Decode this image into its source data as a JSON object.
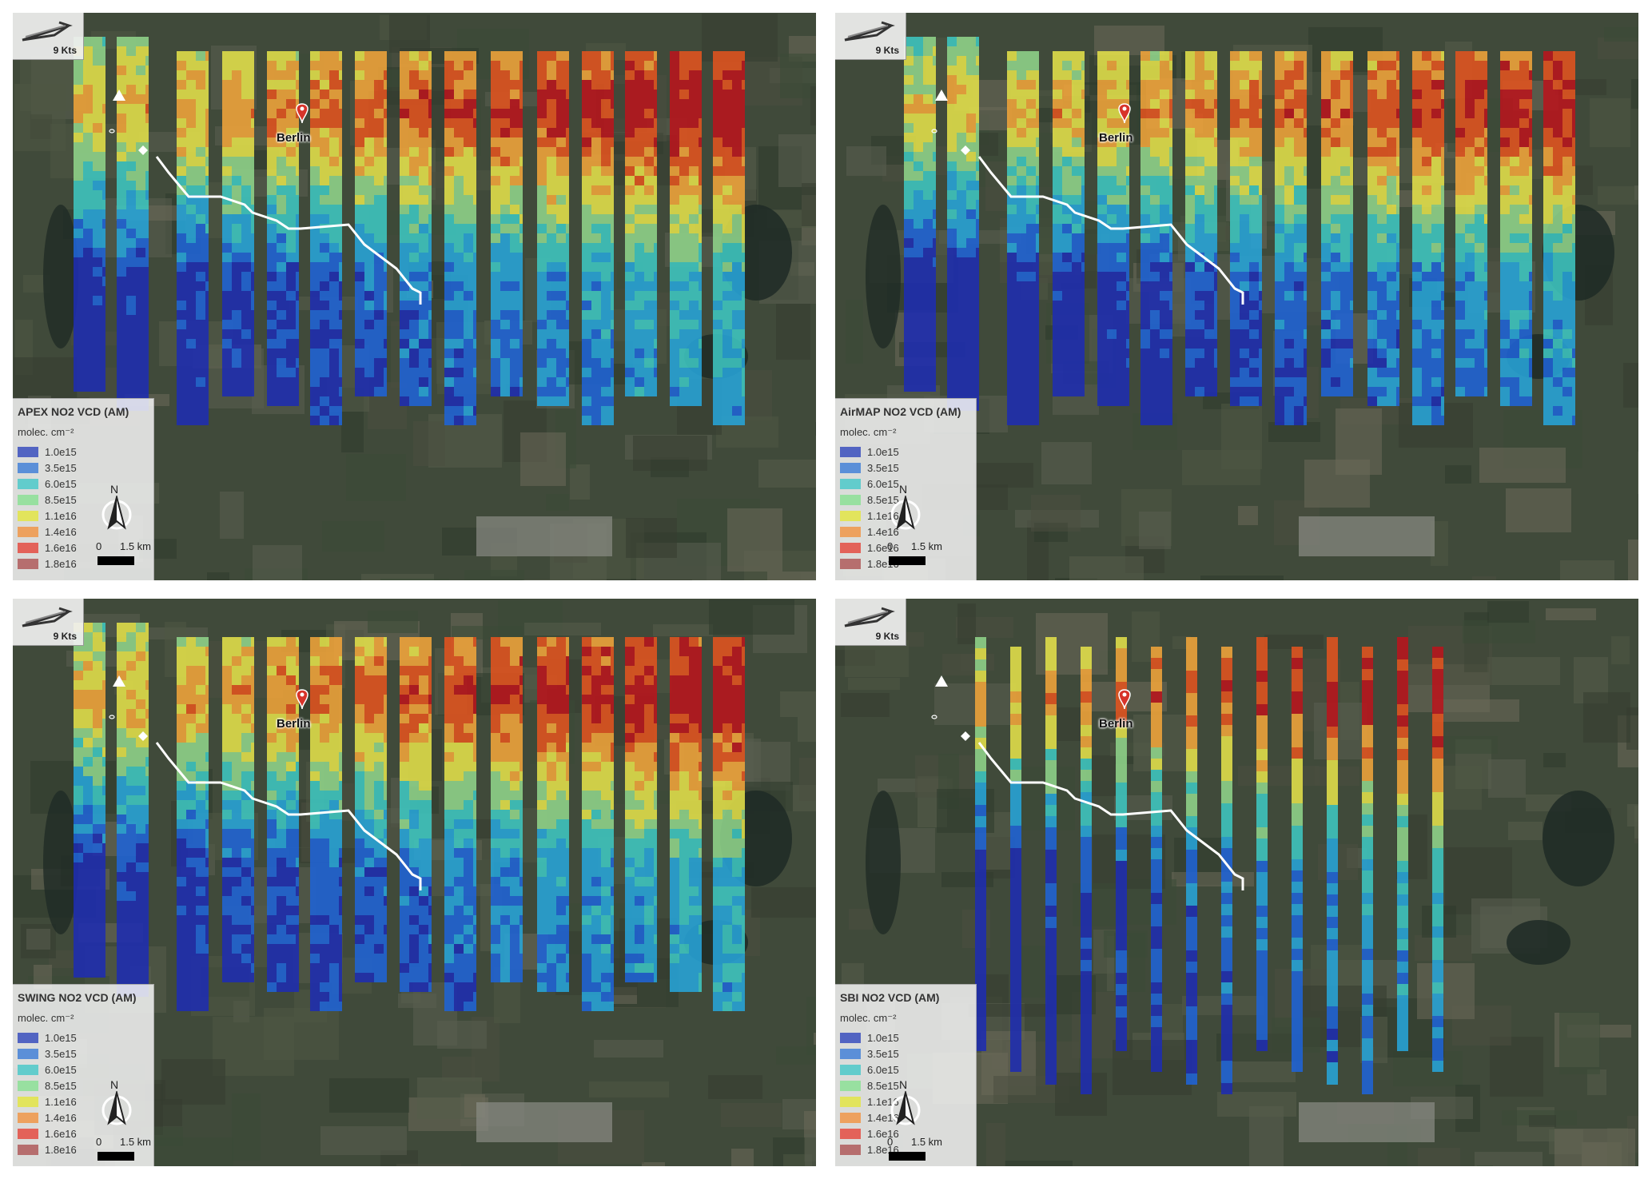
{
  "colors": {
    "map_background": "#3d4438",
    "route": "#ffffff",
    "legend": [
      "#5264c2",
      "#5b8fd8",
      "#62cccc",
      "#98e0a0",
      "#e2e45c",
      "#eda15e",
      "#e36259",
      "#b66e6e"
    ],
    "colormap": [
      "#1e2cb0",
      "#1f63d6",
      "#27a4d8",
      "#3ec6c0",
      "#8fd48a",
      "#e3e04a",
      "#f0a43a",
      "#e1531f",
      "#b8141c"
    ]
  },
  "shared": {
    "wind_label": "9 Kts",
    "city_label": "Berlin",
    "legend_unit": "molec. cm⁻²",
    "legend_labels": [
      "1.0e15",
      "3.5e15",
      "6.0e15",
      "8.5e15",
      "1.1e16",
      "1.4e16",
      "1.6e16",
      "1.8e16"
    ],
    "north_label": "N",
    "scale_zero": "0",
    "scale_distance": "1.5 km",
    "icons": [
      "wind-arrow-icon",
      "power-plant-triangle-icon",
      "station-diamond-icon",
      "location-pin-icon",
      "north-arrow-icon"
    ]
  },
  "panels": [
    {
      "legend_title": "APEX NO2 VCD (AM)",
      "stripe_style": "wide"
    },
    {
      "legend_title": "AirMAP NO2 VCD (AM)",
      "stripe_style": "wide"
    },
    {
      "legend_title": "SWING NO2 VCD (AM)",
      "stripe_style": "wide"
    },
    {
      "legend_title": "SBI NO2 VCD (AM)",
      "stripe_style": "narrow"
    }
  ]
}
